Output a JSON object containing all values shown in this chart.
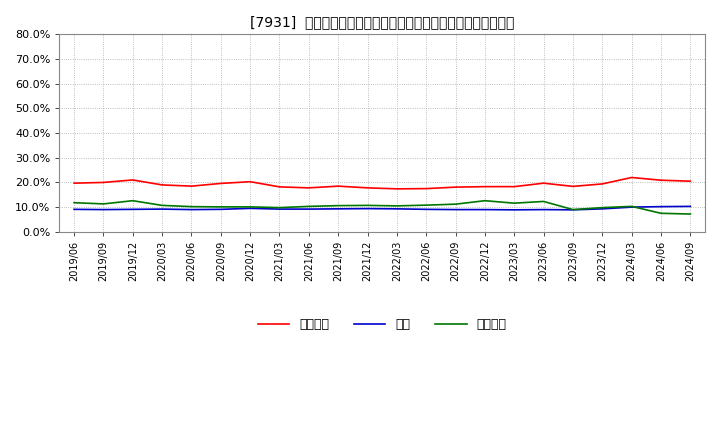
{
  "title": "[7931]  売上債権、在庫、買入債務の総資産に対する比率の推移",
  "ylim": [
    0.0,
    0.8
  ],
  "yticks": [
    0.0,
    0.1,
    0.2,
    0.3,
    0.4,
    0.5,
    0.6,
    0.7,
    0.8
  ],
  "background_color": "#ffffff",
  "plot_bg_color": "#ffffff",
  "grid_color": "#aaaaaa",
  "legend_labels": [
    "売上債権",
    "在庫",
    "買入債務"
  ],
  "line_colors": [
    "#ff0000",
    "#0000cc",
    "#007700"
  ],
  "dates": [
    "2019/06",
    "2019/09",
    "2019/12",
    "2020/03",
    "2020/06",
    "2020/09",
    "2020/12",
    "2021/03",
    "2021/06",
    "2021/09",
    "2021/12",
    "2022/03",
    "2022/06",
    "2022/09",
    "2022/12",
    "2023/03",
    "2023/06",
    "2023/09",
    "2023/12",
    "2024/03",
    "2024/06",
    "2024/09"
  ],
  "series_0": [
    0.197,
    0.2,
    0.21,
    0.19,
    0.185,
    0.196,
    0.203,
    0.182,
    0.178,
    0.185,
    0.178,
    0.174,
    0.175,
    0.181,
    0.183,
    0.183,
    0.197,
    0.184,
    0.194,
    0.22,
    0.209,
    0.205
  ],
  "series_1": [
    0.091,
    0.09,
    0.091,
    0.092,
    0.09,
    0.091,
    0.095,
    0.092,
    0.092,
    0.093,
    0.094,
    0.093,
    0.091,
    0.09,
    0.09,
    0.089,
    0.09,
    0.089,
    0.093,
    0.1,
    0.102,
    0.103
  ],
  "series_2": [
    0.118,
    0.113,
    0.126,
    0.107,
    0.102,
    0.101,
    0.101,
    0.098,
    0.103,
    0.106,
    0.107,
    0.105,
    0.108,
    0.112,
    0.126,
    0.116,
    0.123,
    0.09,
    0.098,
    0.103,
    0.075,
    0.072
  ]
}
